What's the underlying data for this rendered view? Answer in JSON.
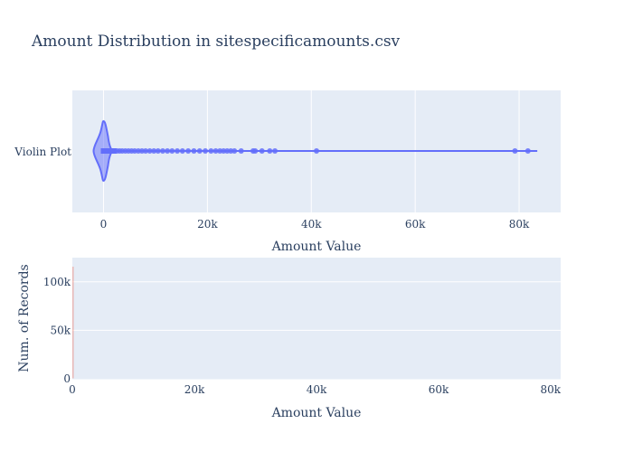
{
  "chart_data": [
    {
      "type": "violin",
      "title": "Amount Distribution in sitespecificamounts.csv",
      "category": "Violin Plot",
      "xlabel": "Amount Value",
      "xlim": [
        -6000,
        88000
      ],
      "xticks": [
        0,
        20000,
        40000,
        60000,
        80000
      ],
      "xtick_labels": [
        "0",
        "20k",
        "40k",
        "60k",
        "80k"
      ],
      "grid": true,
      "color": "#636efa",
      "whisker": [
        0,
        83500
      ],
      "outliers": [
        100,
        300,
        600,
        900,
        1300,
        1700,
        2100,
        2600,
        3100,
        3600,
        4200,
        4800,
        5400,
        6000,
        6700,
        7400,
        8100,
        8900,
        9700,
        10500,
        11400,
        12300,
        13200,
        14200,
        15200,
        16300,
        17400,
        18500,
        19600,
        20700,
        21600,
        22400,
        23100,
        23800,
        24500,
        25200,
        26500,
        28800,
        29200,
        30500,
        32000,
        33000,
        41000,
        79200,
        81700
      ]
    },
    {
      "type": "histogram",
      "xlabel": "Amount Value",
      "ylabel": "Num. of Records",
      "xlim": [
        0,
        80000
      ],
      "ylim": [
        0,
        125000
      ],
      "xticks": [
        0,
        20000,
        40000,
        60000,
        80000
      ],
      "xtick_labels": [
        "0",
        "20k",
        "40k",
        "60k",
        "80k"
      ],
      "yticks": [
        0,
        50000,
        100000
      ],
      "ytick_labels": [
        "0",
        "50k",
        "100k"
      ],
      "grid": true,
      "color": "#ef553b"
    }
  ]
}
